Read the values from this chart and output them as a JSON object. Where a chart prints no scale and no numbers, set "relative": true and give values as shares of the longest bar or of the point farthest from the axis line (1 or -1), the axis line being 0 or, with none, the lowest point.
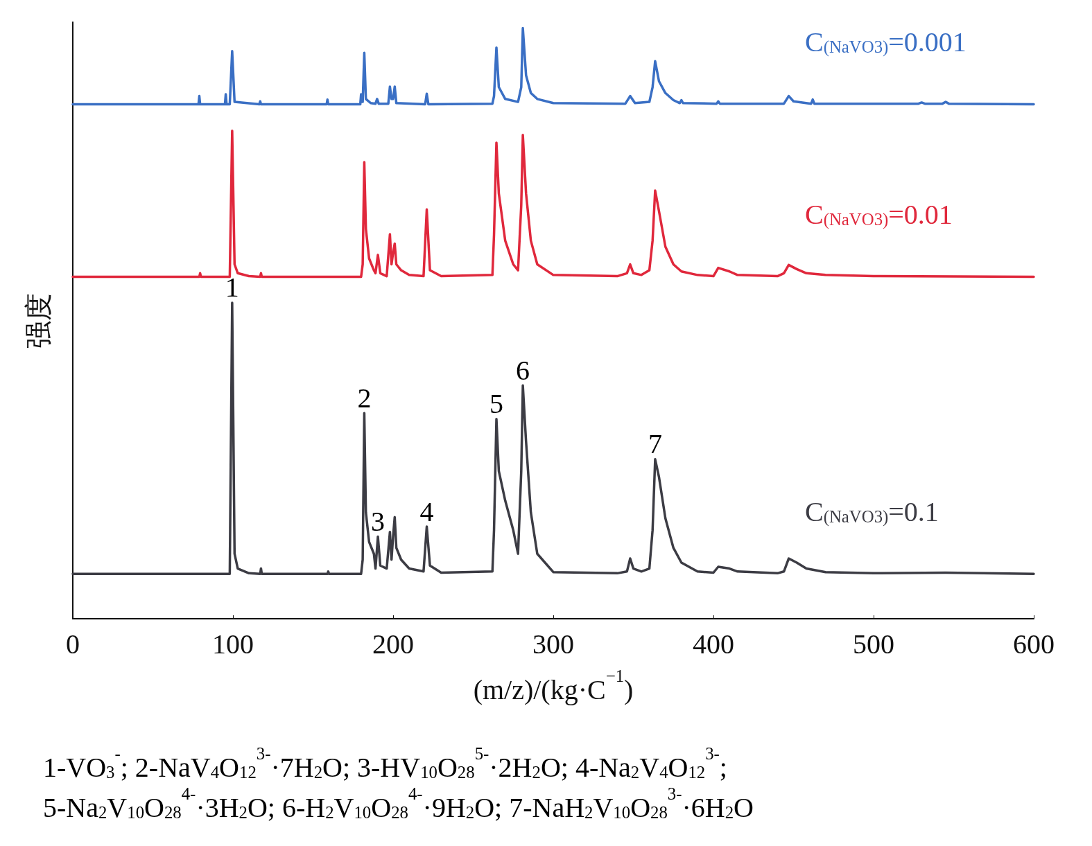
{
  "chart_data": {
    "type": "line",
    "relative": true,
    "xlabel": "(m/z)/(kg·C$^{−1}$)",
    "ylabel": "强度",
    "xlim": [
      0,
      600
    ],
    "xticks": [
      0,
      100,
      200,
      300,
      400,
      500,
      600
    ],
    "grid": false,
    "legend": false,
    "marker": "none",
    "line_style": "solid",
    "series": [
      {
        "name": "C$_{(NaVO3)}$=0.001",
        "color": "#3a6fc4",
        "x": [
          0,
          78.5,
          79,
          79.5,
          95,
          95.5,
          96,
          98,
          99.5,
          101,
          116.5,
          117,
          117.5,
          158.5,
          159,
          159.5,
          179.5,
          180,
          180.5,
          181,
          182,
          183,
          186,
          189,
          190,
          191,
          197,
          198,
          199,
          200,
          201,
          202,
          220,
          221,
          222,
          262,
          263,
          264.5,
          266,
          270,
          278,
          280,
          281,
          283,
          286,
          290,
          300,
          345,
          348,
          351,
          360,
          362,
          363.6,
          366,
          370,
          375,
          379,
          380,
          381,
          402,
          403,
          404,
          444,
          447,
          450,
          461,
          462,
          463,
          528,
          530,
          532,
          543,
          545,
          547,
          600
        ],
        "values": [
          0.871,
          0.871,
          0.885,
          0.871,
          0.871,
          0.888,
          0.871,
          0.871,
          0.961,
          0.875,
          0.871,
          0.876,
          0.871,
          0.871,
          0.879,
          0.871,
          0.871,
          0.888,
          0.875,
          0.875,
          0.958,
          0.88,
          0.873,
          0.872,
          0.88,
          0.872,
          0.872,
          0.901,
          0.88,
          0.88,
          0.901,
          0.873,
          0.871,
          0.889,
          0.871,
          0.872,
          0.885,
          0.967,
          0.9,
          0.88,
          0.875,
          0.9,
          1.0,
          0.92,
          0.89,
          0.88,
          0.873,
          0.872,
          0.885,
          0.873,
          0.875,
          0.9,
          0.944,
          0.91,
          0.89,
          0.878,
          0.873,
          0.878,
          0.873,
          0.872,
          0.876,
          0.872,
          0.872,
          0.885,
          0.876,
          0.872,
          0.879,
          0.872,
          0.872,
          0.874,
          0.872,
          0.872,
          0.875,
          0.872,
          0.871
        ]
      },
      {
        "name": "C$_{(NaVO3)}$=0.01",
        "color": "#e0283c",
        "x": [
          0,
          79,
          79.5,
          80,
          98,
          99.5,
          101,
          103,
          110,
          117,
          117.5,
          118,
          180,
          181,
          182,
          183,
          185,
          188,
          189,
          190.5,
          192,
          196,
          198,
          199,
          200,
          201,
          202,
          205,
          210,
          219,
          221,
          223,
          230,
          262,
          263,
          264.5,
          266,
          270,
          275,
          278,
          280,
          281,
          283,
          286,
          290,
          300,
          340,
          346,
          348,
          350,
          355,
          360,
          362,
          363.6,
          366,
          370,
          375,
          380,
          390,
          400,
          403,
          410,
          415,
          440,
          444,
          447,
          452,
          458,
          470,
          500,
          600
        ],
        "values": [
          0.579,
          0.579,
          0.585,
          0.579,
          0.579,
          0.826,
          0.6,
          0.585,
          0.58,
          0.579,
          0.585,
          0.579,
          0.579,
          0.6,
          0.773,
          0.66,
          0.61,
          0.59,
          0.585,
          0.616,
          0.585,
          0.58,
          0.651,
          0.6,
          0.62,
          0.635,
          0.6,
          0.59,
          0.582,
          0.58,
          0.693,
          0.59,
          0.58,
          0.582,
          0.65,
          0.806,
          0.72,
          0.64,
          0.6,
          0.59,
          0.7,
          0.819,
          0.72,
          0.64,
          0.6,
          0.582,
          0.58,
          0.585,
          0.6,
          0.585,
          0.582,
          0.59,
          0.64,
          0.725,
          0.69,
          0.63,
          0.6,
          0.588,
          0.582,
          0.58,
          0.594,
          0.588,
          0.582,
          0.58,
          0.585,
          0.599,
          0.592,
          0.585,
          0.582,
          0.58,
          0.579
        ]
      },
      {
        "name": "C$_{(NaVO3)}$=0.1",
        "color": "#3c3c44",
        "x": [
          0,
          98,
          99.5,
          101,
          103,
          110,
          117,
          117.5,
          118,
          159,
          159.5,
          160,
          180,
          181,
          182,
          183,
          185,
          188,
          189,
          190.5,
          192,
          196,
          198,
          199,
          200,
          201,
          202,
          205,
          210,
          219,
          221,
          223,
          230,
          262,
          263,
          264.5,
          266,
          270,
          275,
          278,
          280,
          281,
          283,
          286,
          290,
          300,
          340,
          346,
          348,
          350,
          355,
          360,
          362,
          363.6,
          366,
          370,
          375,
          380,
          390,
          400,
          403,
          410,
          415,
          440,
          444,
          447,
          452,
          458,
          470,
          500,
          545,
          600
        ],
        "values": [
          0.076,
          0.076,
          0.535,
          0.11,
          0.085,
          0.077,
          0.076,
          0.085,
          0.076,
          0.076,
          0.08,
          0.076,
          0.076,
          0.1,
          0.348,
          0.18,
          0.13,
          0.11,
          0.085,
          0.139,
          0.09,
          0.085,
          0.147,
          0.1,
          0.14,
          0.172,
          0.12,
          0.1,
          0.085,
          0.08,
          0.156,
          0.09,
          0.078,
          0.08,
          0.15,
          0.338,
          0.25,
          0.2,
          0.15,
          0.11,
          0.25,
          0.395,
          0.3,
          0.18,
          0.11,
          0.079,
          0.077,
          0.08,
          0.102,
          0.085,
          0.08,
          0.085,
          0.15,
          0.27,
          0.24,
          0.17,
          0.12,
          0.095,
          0.08,
          0.078,
          0.088,
          0.085,
          0.08,
          0.077,
          0.08,
          0.102,
          0.095,
          0.085,
          0.079,
          0.077,
          0.078,
          0.076
        ]
      }
    ],
    "annotations": [
      {
        "text": "1",
        "x": 99.5,
        "y": 0.535
      },
      {
        "text": "2",
        "x": 182,
        "y": 0.348
      },
      {
        "text": "3",
        "x": 190.5,
        "y": 0.139
      },
      {
        "text": "4",
        "x": 221,
        "y": 0.156
      },
      {
        "text": "5",
        "x": 264.5,
        "y": 0.338
      },
      {
        "text": "6",
        "x": 281,
        "y": 0.395
      },
      {
        "text": "7",
        "x": 363.6,
        "y": 0.27
      },
      "1-VO$_{3}$$^{-}$; 2-NaV$_{4}$O$_{12}$$^{3-}$·7H$_{2}$O; 3-HV$_{10}$O$_{28}$$^{5-}$·2H$_{2}$O; 4-Na$_{2}$V$_{4}$O$_{12}$$^{3-}$;",
      "5-Na$_{2}$V$_{10}$O$_{28}$$^{4-}$·3H$_{2}$O; 6-H$_{2}$V$_{10}$O$_{28}$$^{4-}$·9H$_{2}$O; 7-NaH$_{2}$V$_{10}$O$_{28}$$^{3-}$·6H$_{2}$O"
    ]
  }
}
